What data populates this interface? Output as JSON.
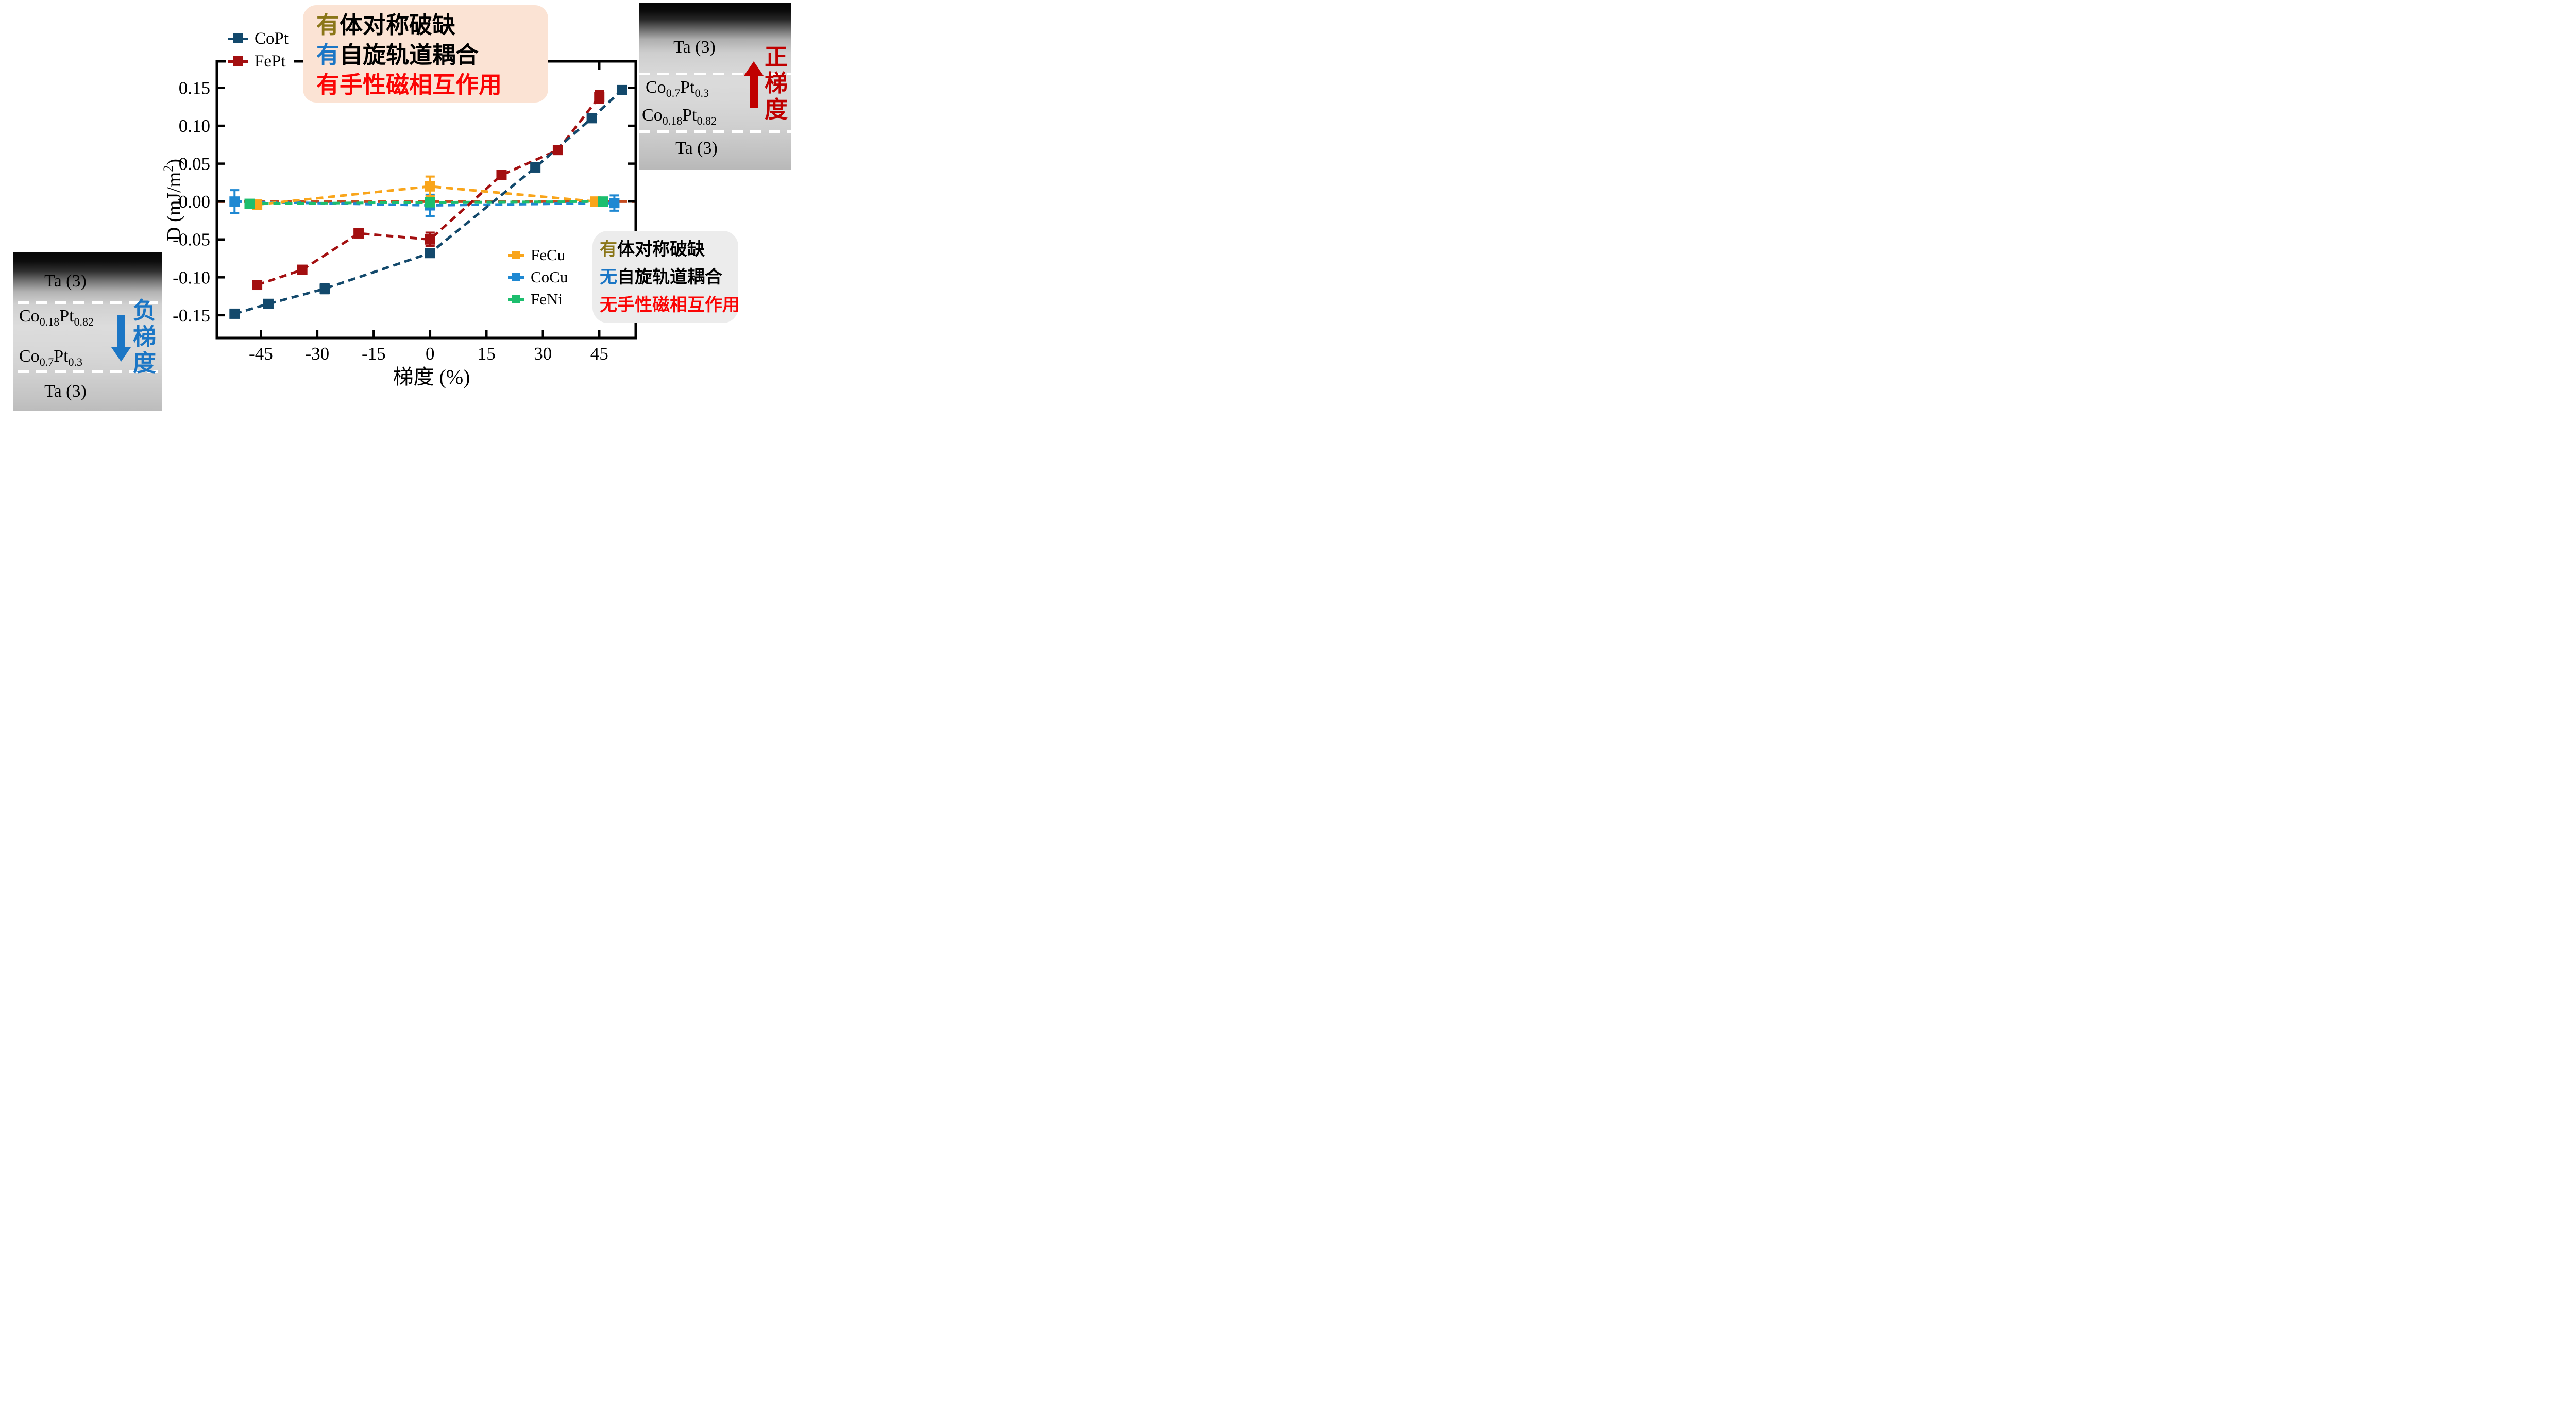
{
  "figure": {
    "description_domain": "scientific chart of DMI constant D versus composition gradient for five alloy films",
    "background": "#ffffff"
  },
  "colors": {
    "copt": "#13496C",
    "fept": "#A30F10",
    "fecu": "#F9A51B",
    "cocu": "#1E88D2",
    "feni": "#1DBE6E",
    "zero_line": "#C44A1E",
    "olive_text": "#8A7618",
    "blue_text": "#1B76C5",
    "red_text": "#FB0505",
    "arrow_red": "#C00000",
    "arrow_blue": "#1B76C5",
    "top_box_bg": "#FBE3D4",
    "bottom_box_bg": "#ECECEC",
    "axis": "#000000"
  },
  "chart_data": {
    "type": "line",
    "title": "",
    "xlabel": "梯度 (%)",
    "ylabel": "D (mJ/m²)",
    "ylabel_parts": [
      "D (mJ/m",
      "2",
      ")"
    ],
    "xlim": [
      -56.7,
      54.7
    ],
    "ylim": [
      -0.18,
      0.185
    ],
    "grid": false,
    "x_ticks": [
      {
        "v": -45,
        "label": "-45"
      },
      {
        "v": -30,
        "label": "-30"
      },
      {
        "v": -15,
        "label": "-15"
      },
      {
        "v": 0,
        "label": "0"
      },
      {
        "v": 15,
        "label": "15"
      },
      {
        "v": 30,
        "label": "30"
      },
      {
        "v": 45,
        "label": "45"
      }
    ],
    "y_ticks": [
      {
        "v": 0.15,
        "label": "0.15"
      },
      {
        "v": 0.1,
        "label": "0.10"
      },
      {
        "v": 0.05,
        "label": "0.05"
      },
      {
        "v": 0.0,
        "label": "0.00"
      },
      {
        "v": -0.05,
        "label": "-0.05"
      },
      {
        "v": -0.1,
        "label": "-0.10"
      },
      {
        "v": -0.15,
        "label": "-0.15"
      }
    ],
    "zero_line": {
      "y": 0,
      "color": "#C44A1E",
      "style": "dashed"
    },
    "line_style": "dashed",
    "marker": "square",
    "series": [
      {
        "name": "CoCu",
        "color": "#1E88D2",
        "x": [
          -52,
          0,
          49
        ],
        "y": [
          0.0,
          -0.005,
          -0.002
        ],
        "yerr": [
          0.015,
          0.014,
          0.01
        ]
      },
      {
        "name": "FeCu",
        "color": "#F9A51B",
        "x": [
          -46,
          0,
          44
        ],
        "y": [
          -0.004,
          0.02,
          0.0
        ],
        "yerr": [
          0,
          0.013,
          0.004
        ]
      },
      {
        "name": "FeNi",
        "color": "#1DBE6E",
        "x": [
          -48,
          0,
          46
        ],
        "y": [
          -0.003,
          -0.001,
          0.0
        ],
        "yerr": [
          0,
          0,
          0
        ]
      },
      {
        "name": "FePt",
        "color": "#A30F10",
        "x": [
          -46,
          -34,
          -19,
          0,
          19,
          34,
          45
        ],
        "y": [
          -0.11,
          -0.09,
          -0.042,
          -0.05,
          0.035,
          0.068,
          0.138
        ],
        "yerr": [
          0,
          0,
          0,
          0.009,
          0,
          0,
          0.008
        ]
      },
      {
        "name": "CoPt",
        "color": "#13496C",
        "x": [
          -52,
          -43,
          -28,
          0,
          28,
          43,
          51
        ],
        "y": [
          -0.148,
          -0.135,
          -0.115,
          -0.068,
          0.045,
          0.11,
          0.147
        ],
        "yerr": [
          0,
          0,
          0.006,
          0.005,
          0.004,
          0,
          0
        ]
      }
    ]
  },
  "legend_main": {
    "items": [
      {
        "label": "CoPt",
        "color": "#13496C"
      },
      {
        "label": "FePt",
        "color": "#A30F10"
      }
    ]
  },
  "legend_secondary": {
    "items": [
      {
        "label": "FeCu",
        "color": "#F9A51B"
      },
      {
        "label": "CoCu",
        "color": "#1E88D2"
      },
      {
        "label": "FeNi",
        "color": "#1DBE6E"
      }
    ]
  },
  "annotations": {
    "top_box": {
      "bg": "#FBE3D4",
      "lines": [
        {
          "prefix": "有",
          "prefix_color": "#8A7618",
          "rest": "体对称破缺",
          "rest_color": "#000000"
        },
        {
          "prefix": "有",
          "prefix_color": "#1B76C5",
          "rest": "自旋轨道耦合",
          "rest_color": "#000000"
        },
        {
          "prefix": "有",
          "prefix_color": "#FB0505",
          "rest": "手性磁相互作用",
          "rest_color": "#FB0505"
        }
      ]
    },
    "bottom_box": {
      "bg": "#ECECEC",
      "lines": [
        {
          "prefix": "有",
          "prefix_color": "#8A7618",
          "rest": "体对称破缺",
          "rest_color": "#000000"
        },
        {
          "prefix": "无",
          "prefix_color": "#1B76C5",
          "rest": "自旋轨道耦合",
          "rest_color": "#000000"
        },
        {
          "prefix": "无",
          "prefix_color": "#FB0505",
          "rest": "手性磁相互作用",
          "rest_color": "#FB0505"
        }
      ]
    }
  },
  "insets": {
    "left": {
      "title": "负梯度",
      "title_chars": [
        "负",
        "梯",
        "度"
      ],
      "title_color": "#1B76C5",
      "arrow_direction": "down",
      "arrow_color": "#1B76C5",
      "layers": [
        {
          "text": "Ta (3)"
        },
        {
          "p0": "Co",
          "s0": "0.18",
          "p1": "Pt",
          "s1": "0.82"
        },
        {
          "p0": "Co",
          "s0": "0.7",
          "p1": "Pt",
          "s1": "0.3"
        },
        {
          "text": "Ta (3)"
        }
      ]
    },
    "right": {
      "title": "正梯度",
      "title_chars": [
        "正",
        "梯",
        "度"
      ],
      "title_color": "#C00000",
      "arrow_direction": "up",
      "arrow_color": "#C00000",
      "layers": [
        {
          "text": "Ta (3)"
        },
        {
          "p0": "Co",
          "s0": "0.7",
          "p1": "Pt",
          "s1": "0.3"
        },
        {
          "p0": "Co",
          "s0": "0.18",
          "p1": "Pt",
          "s1": "0.82"
        },
        {
          "text": "Ta (3)"
        }
      ]
    }
  }
}
